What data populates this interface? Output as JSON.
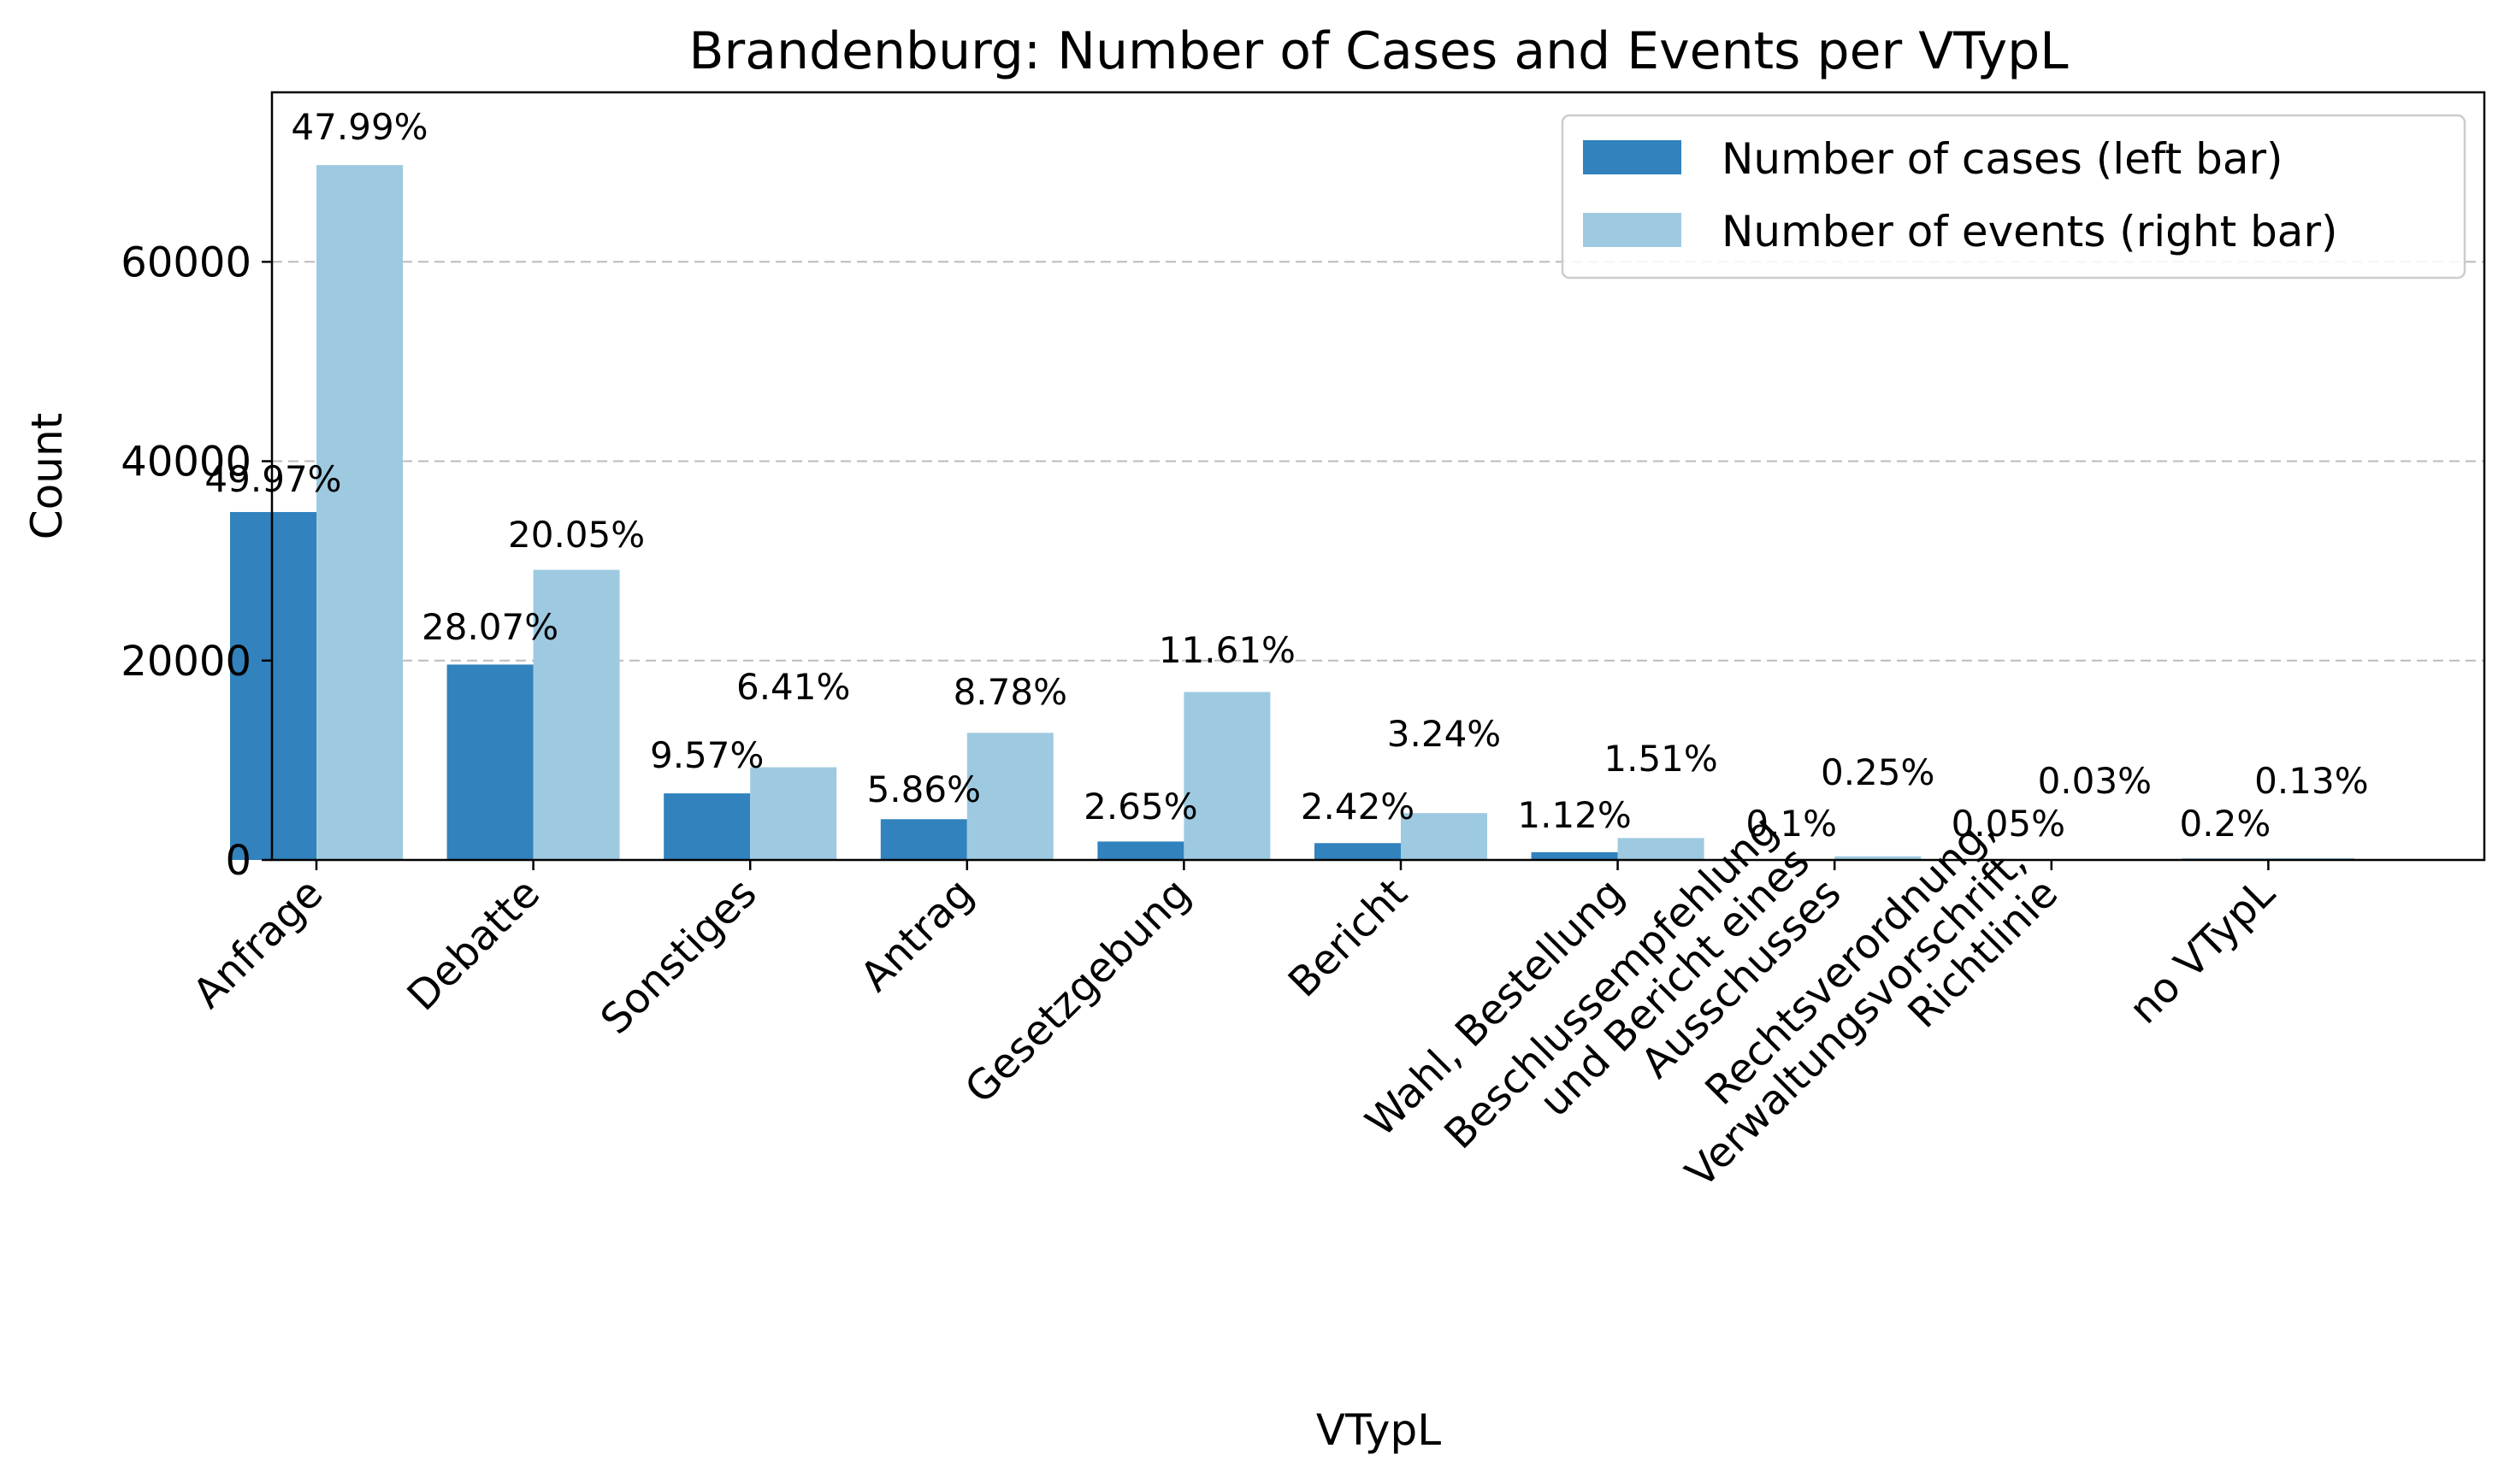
{
  "chart_data": {
    "type": "bar",
    "title": "Brandenburg: Number of Cases and Events per VTypL",
    "xlabel": "VTypL",
    "ylabel": "Count",
    "ylim": [
      0,
      77000
    ],
    "yticks": [
      0,
      20000,
      40000,
      60000
    ],
    "ytick_labels": [
      "0",
      "20000",
      "40000",
      "60000"
    ],
    "grid": "y-dashed",
    "legend_position": "top-right",
    "categories": [
      [
        "Anfrage"
      ],
      [
        "Debatte"
      ],
      [
        "Sonstiges"
      ],
      [
        "Antrag"
      ],
      [
        "Gesetzgebung"
      ],
      [
        "Bericht"
      ],
      [
        "Wahl, Bestellung"
      ],
      [
        "Beschlussempfehlung",
        "und Bericht eines",
        "Ausschusses"
      ],
      [
        "Rechtsverordnung,",
        "Verwaltungsvorschrift,",
        "Richtlinie"
      ],
      [
        "no VTypL"
      ]
    ],
    "series": [
      {
        "name": "Number of cases (left bar)",
        "color": "#3182bd",
        "values": [
          34900,
          19600,
          6680,
          4090,
          1850,
          1690,
          780,
          70,
          35,
          140
        ],
        "labels": [
          "49.97%",
          "28.07%",
          "9.57%",
          "5.86%",
          "2.65%",
          "2.42%",
          "1.12%",
          "0.1%",
          "0.05%",
          "0.2%"
        ]
      },
      {
        "name": "Number of events (right bar)",
        "color": "#9ecae1",
        "values": [
          69700,
          29100,
          9300,
          12750,
          16850,
          4700,
          2200,
          365,
          45,
          190
        ],
        "labels": [
          "47.99%",
          "20.05%",
          "6.41%",
          "8.78%",
          "11.61%",
          "3.24%",
          "1.51%",
          "0.25%",
          "0.03%",
          "0.13%"
        ]
      }
    ]
  }
}
